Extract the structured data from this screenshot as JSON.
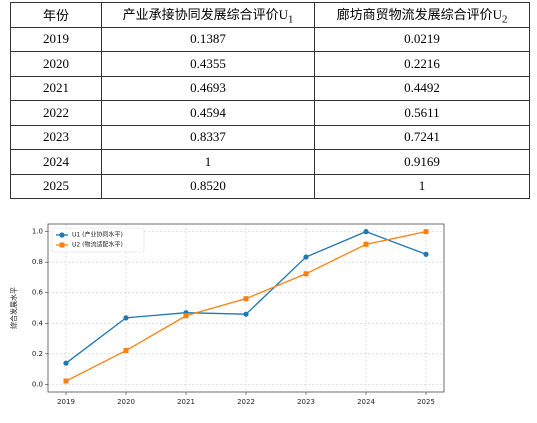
{
  "table": {
    "header": [
      {
        "text": "年份"
      },
      {
        "text": "产业承接协同发展综合评价U",
        "sub": "1"
      },
      {
        "text": "廊坊商贸物流发展综合评价U",
        "sub": "2"
      }
    ],
    "rows": [
      [
        "2019",
        "0.1387",
        "0.0219"
      ],
      [
        "2020",
        "0.4355",
        "0.2216"
      ],
      [
        "2021",
        "0.4693",
        "0.4492"
      ],
      [
        "2022",
        "0.4594",
        "0.5611"
      ],
      [
        "2023",
        "0.8337",
        "0.7241"
      ],
      [
        "2024",
        "1",
        "0.9169"
      ],
      [
        "2025",
        "0.8520",
        "1"
      ]
    ]
  },
  "chart_data": {
    "type": "line",
    "ylabel": "综合发展水平",
    "categories": [
      "2019",
      "2020",
      "2021",
      "2022",
      "2023",
      "2024",
      "2025"
    ],
    "series": [
      {
        "name": "U1 (产业协同水平)",
        "color": "#1f77b4",
        "marker": "circle",
        "values": [
          0.1387,
          0.4355,
          0.4693,
          0.4594,
          0.8337,
          1,
          0.852
        ]
      },
      {
        "name": "U2 (物流适配水平)",
        "color": "#ff7f0e",
        "marker": "square",
        "values": [
          0.0219,
          0.2216,
          0.4492,
          0.5611,
          0.7241,
          0.9169,
          1
        ]
      }
    ],
    "ylim": [
      -0.05,
      1.05
    ],
    "yticks": [
      {
        "value": 0,
        "label": "0.0"
      },
      {
        "value": 0.2,
        "label": "0.2"
      },
      {
        "value": 0.4,
        "label": "0.4"
      },
      {
        "value": 0.6,
        "label": "0.6"
      },
      {
        "value": 0.8,
        "label": "0.8"
      },
      {
        "value": 1,
        "label": "1.0"
      }
    ],
    "grid": true,
    "legend": "upper-left"
  }
}
